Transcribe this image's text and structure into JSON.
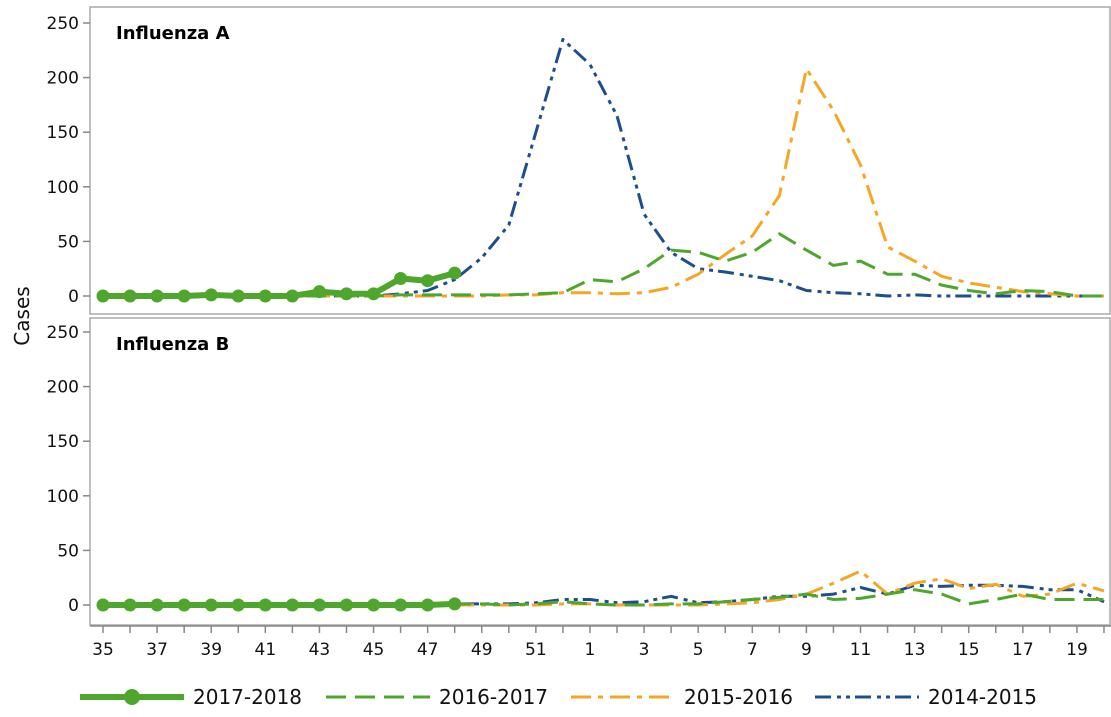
{
  "chart_data": {
    "type": "line",
    "ylabel": "Cases",
    "xlabel": "",
    "ylim": [
      0,
      250
    ],
    "yticks": [
      0,
      50,
      100,
      150,
      200,
      250
    ],
    "x_weeks": [
      35,
      36,
      37,
      38,
      39,
      40,
      41,
      42,
      43,
      44,
      45,
      46,
      47,
      48,
      49,
      50,
      51,
      52,
      1,
      2,
      3,
      4,
      5,
      6,
      7,
      8,
      9,
      10,
      11,
      12,
      13,
      14,
      15,
      16,
      17,
      18,
      19,
      20
    ],
    "x_tick_labels": [
      "35",
      "37",
      "39",
      "41",
      "43",
      "45",
      "47",
      "49",
      "51",
      "1",
      "3",
      "5",
      "7",
      "9",
      "11",
      "13",
      "15",
      "17",
      "19"
    ],
    "legend": {
      "placement": "bottom"
    },
    "series_styles": [
      {
        "name": "2017-2018",
        "color": "#4ea72c"
      },
      {
        "name": "2016-2017",
        "color": "#4ea72c"
      },
      {
        "name": "2015-2016",
        "color": "#f5a623"
      },
      {
        "name": "2014-2015",
        "color": "#1f4e8c"
      }
    ],
    "panels": [
      {
        "title": "Influenza A",
        "series": [
          {
            "name": "2017-2018",
            "values": [
              0,
              0,
              0,
              0,
              1,
              0,
              0,
              0,
              4,
              2,
              2,
              16,
              14,
              21
            ]
          },
          {
            "name": "2016-2017",
            "values": [
              0,
              0,
              0,
              0,
              0,
              0,
              0,
              0,
              0,
              0,
              0,
              1,
              1,
              1,
              1,
              1,
              2,
              3,
              15,
              13,
              25,
              42,
              40,
              32,
              40,
              57,
              42,
              28,
              32,
              20,
              20,
              10,
              5,
              2,
              5,
              4,
              0,
              0
            ]
          },
          {
            "name": "2015-2016",
            "values": [
              0,
              0,
              0,
              0,
              0,
              0,
              0,
              0,
              0,
              0,
              0,
              0,
              0,
              0,
              0,
              1,
              1,
              3,
              3,
              2,
              3,
              8,
              20,
              38,
              55,
              92,
              208,
              170,
              120,
              45,
              32,
              18,
              12,
              8,
              4,
              2,
              0,
              0
            ]
          },
          {
            "name": "2014-2015",
            "values": [
              0,
              0,
              0,
              0,
              0,
              0,
              0,
              0,
              0,
              0,
              0,
              2,
              5,
              15,
              35,
              65,
              150,
              235,
              212,
              165,
              75,
              40,
              25,
              22,
              18,
              14,
              5,
              3,
              2,
              0,
              1,
              0,
              0,
              0,
              0,
              0,
              0,
              0
            ]
          }
        ]
      },
      {
        "title": "Influenza B",
        "series": [
          {
            "name": "2017-2018",
            "values": [
              0,
              0,
              0,
              0,
              0,
              0,
              0,
              0,
              0,
              0,
              0,
              0,
              0,
              1
            ]
          },
          {
            "name": "2016-2017",
            "values": [
              0,
              0,
              0,
              0,
              0,
              0,
              0,
              0,
              0,
              0,
              0,
              0,
              0,
              1,
              1,
              0,
              1,
              3,
              1,
              0,
              0,
              1,
              1,
              3,
              5,
              7,
              10,
              5,
              6,
              10,
              14,
              10,
              1,
              5,
              10,
              5,
              5,
              5
            ]
          },
          {
            "name": "2015-2016",
            "values": [
              0,
              0,
              0,
              0,
              0,
              0,
              0,
              0,
              0,
              0,
              0,
              0,
              0,
              0,
              0,
              0,
              0,
              1,
              1,
              0,
              0,
              0,
              0,
              1,
              2,
              5,
              10,
              20,
              31,
              10,
              20,
              24,
              15,
              19,
              8,
              10,
              20,
              13
            ]
          },
          {
            "name": "2014-2015",
            "values": [
              0,
              0,
              0,
              0,
              0,
              0,
              0,
              0,
              0,
              0,
              0,
              0,
              0,
              1,
              1,
              1,
              2,
              5,
              5,
              2,
              3,
              8,
              2,
              3,
              5,
              8,
              8,
              10,
              16,
              10,
              18,
              17,
              18,
              18,
              17,
              14,
              14,
              3
            ]
          }
        ]
      }
    ]
  }
}
